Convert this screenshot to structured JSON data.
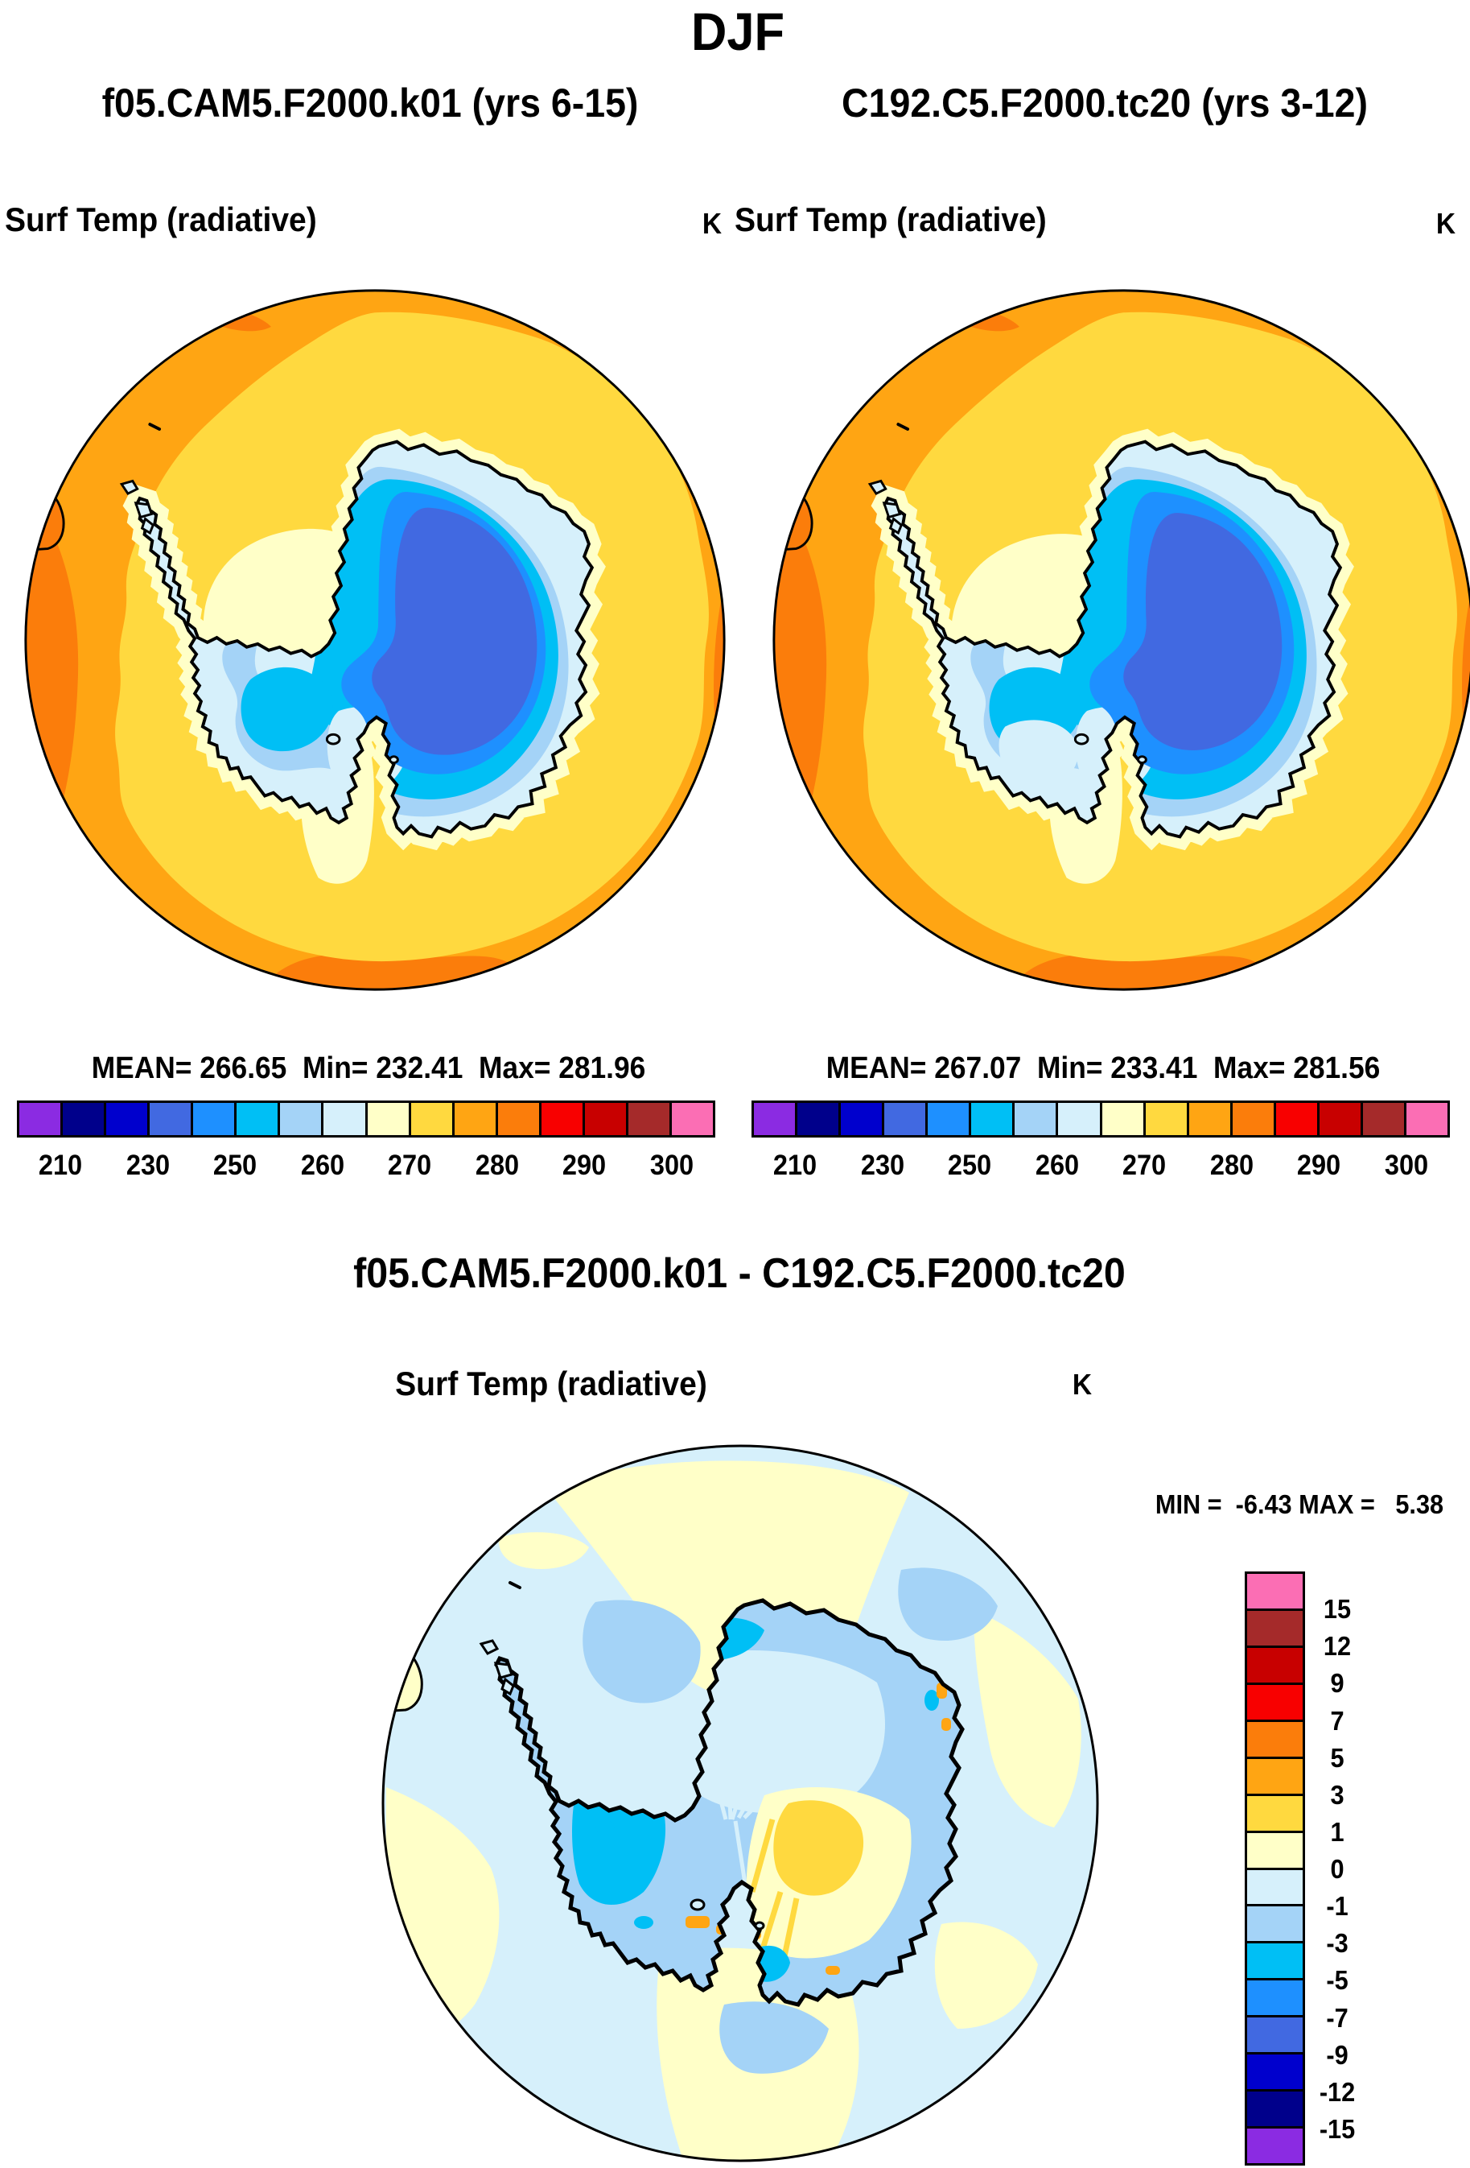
{
  "header": {
    "season": "DJF",
    "left_run_title": "f05.CAM5.F2000.k01 (yrs 6-15)",
    "right_run_title": "C192.C5.F2000.tc20 (yrs 3-12)"
  },
  "left_panel": {
    "field_label": "Surf Temp (radiative)",
    "units": "K",
    "stats": "MEAN= 266.65  Min= 232.41  Max= 281.96"
  },
  "right_panel": {
    "field_label": "Surf Temp (radiative)",
    "units": "K",
    "stats": "MEAN= 267.07  Min= 233.41  Max= 281.56"
  },
  "diff_panel": {
    "title": "f05.CAM5.F2000.k01 - C192.C5.F2000.tc20",
    "field_label": "Surf Temp (radiative)",
    "units": "K",
    "minmax": "MIN =  -6.43 MAX =   5.38"
  },
  "scale_bar": {
    "tick_labels": [
      "210",
      "230",
      "250",
      "260",
      "270",
      "280",
      "290",
      "300"
    ],
    "tick_boundary_indices": [
      1,
      3,
      5,
      7,
      9,
      11,
      13,
      15
    ],
    "colors": [
      "#8B2BE2",
      "#00008B",
      "#0000CD",
      "#4169E1",
      "#1E90FF",
      "#00BFF5",
      "#A4D3F7",
      "#D6F0FB",
      "#FFFFC8",
      "#FFD93F",
      "#FFA513",
      "#FB7D0B",
      "#F80000",
      "#C80000",
      "#A52A2A",
      "#FB6EB4"
    ]
  },
  "diff_scale_bar": {
    "tick_labels": [
      "15",
      "12",
      "9",
      "7",
      "5",
      "3",
      "1",
      "0",
      "-1",
      "-3",
      "-5",
      "-7",
      "-9",
      "-12",
      "-15"
    ],
    "colors": [
      "#FB6EB4",
      "#A52A2A",
      "#C80000",
      "#F80000",
      "#FB7D0B",
      "#FFA513",
      "#FFD93F",
      "#FFFFC8",
      "#D6F0FB",
      "#A4D3F7",
      "#00BFF5",
      "#1E90FF",
      "#4169E1",
      "#0000CD",
      "#00008B",
      "#8B2BE2"
    ]
  },
  "chart_data": [
    {
      "type": "heatmap",
      "subtype": "south-polar-stereographic-filled-contour-map",
      "title": "f05.CAM5.F2000.k01 (yrs 6-15)",
      "season": "DJF",
      "field": "Surf Temp (radiative)",
      "units": "K",
      "mean": 266.65,
      "min": 232.41,
      "max": 281.96,
      "contour_levels": [
        210,
        220,
        230,
        240,
        250,
        255,
        260,
        265,
        270,
        275,
        280,
        285,
        290,
        295,
        300
      ],
      "palette": [
        "#8B2BE2",
        "#00008B",
        "#0000CD",
        "#4169E1",
        "#1E90FF",
        "#00BFF5",
        "#A4D3F7",
        "#D6F0FB",
        "#FFFFC8",
        "#FFD93F",
        "#FFA513",
        "#FB7D0B",
        "#F80000",
        "#C80000",
        "#A52A2A",
        "#FB6EB4"
      ],
      "notes": "Antarctica interior 232-250 K (royal/dodger blues), ice shelves 255-265 K (cyan to pale blue), coastal fringe 265-270 K (cream), Southern Ocean 270-275 K (gold), 275-285 K toward map edge (amber/orange)"
    },
    {
      "type": "heatmap",
      "subtype": "south-polar-stereographic-filled-contour-map",
      "title": "C192.C5.F2000.tc20 (yrs 3-12)",
      "season": "DJF",
      "field": "Surf Temp (radiative)",
      "units": "K",
      "mean": 267.07,
      "min": 233.41,
      "max": 281.56,
      "contour_levels": [
        210,
        220,
        230,
        240,
        250,
        255,
        260,
        265,
        270,
        275,
        280,
        285,
        290,
        295,
        300
      ],
      "palette": [
        "#8B2BE2",
        "#00008B",
        "#0000CD",
        "#4169E1",
        "#1E90FF",
        "#00BFF5",
        "#A4D3F7",
        "#D6F0FB",
        "#FFFFC8",
        "#FFD93F",
        "#FFA513",
        "#FB7D0B",
        "#F80000",
        "#C80000",
        "#A52A2A",
        "#FB6EB4"
      ],
      "notes": "Same pattern as left panel with slightly warmer mean and more pale/cream area over West Antarctica"
    },
    {
      "type": "heatmap",
      "subtype": "south-polar-stereographic-difference-map",
      "title": "f05.CAM5.F2000.k01 - C192.C5.F2000.tc20",
      "season": "DJF",
      "field": "Surf Temp (radiative)",
      "units": "K",
      "min": -6.43,
      "max": 5.38,
      "contour_levels": [
        -15,
        -12,
        -9,
        -7,
        -5,
        -3,
        -1,
        0,
        1,
        3,
        5,
        7,
        9,
        12,
        15
      ],
      "palette_top_to_bottom": [
        "#FB6EB4",
        "#A52A2A",
        "#C80000",
        "#F80000",
        "#FB7D0B",
        "#FFA513",
        "#FFD93F",
        "#FFFFC8",
        "#D6F0FB",
        "#A4D3F7",
        "#00BFF5",
        "#1E90FF",
        "#4169E1",
        "#0000CD",
        "#00008B",
        "#8B2BE2"
      ],
      "notes": "Mostly -1 to -3 K over Antarctica (light blue) with -3 to -5 K patches (cyan) over West Antarctica and coasts, +1 to +3 K (gold) over part of the East Antarctic plateau, ocean differences between -1 and +1 K (pale blue / pale yellow)"
    }
  ]
}
